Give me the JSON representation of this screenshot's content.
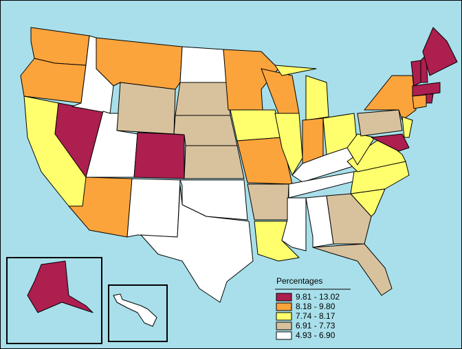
{
  "map": {
    "legend": {
      "title": "Percentages",
      "items": [
        {
          "label": "9.81 - 13.02",
          "color": "#ac1f4f"
        },
        {
          "label": "8.18 - 9.80",
          "color": "#fba43c"
        },
        {
          "label": "7.74 - 8.17",
          "color": "#ffff6e"
        },
        {
          "label": "6.91 - 7.73",
          "color": "#d8c29e"
        },
        {
          "label": "4.93 - 6.90",
          "color": "#ffffff"
        }
      ]
    },
    "region_classes": [
      1,
      1,
      2,
      0,
      4,
      1,
      3,
      4,
      0,
      1,
      4,
      4,
      3,
      3,
      3,
      4,
      4,
      1,
      2,
      1,
      3,
      2,
      1,
      2,
      2,
      2,
      1,
      2,
      4,
      4,
      4,
      4,
      3,
      3,
      2,
      2,
      2,
      2,
      3,
      1,
      2,
      0,
      0,
      0,
      0,
      0,
      1,
      0,
      0,
      4
    ]
  }
}
